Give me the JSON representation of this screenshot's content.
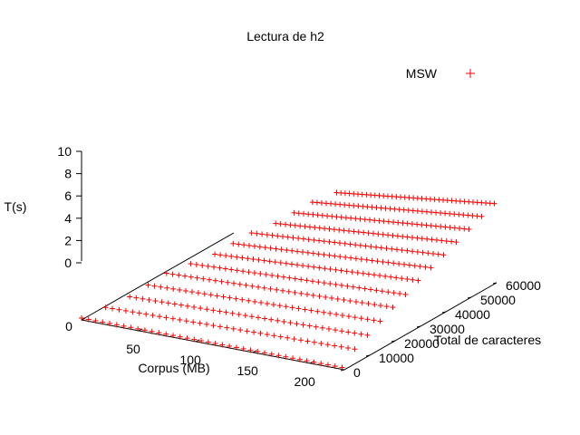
{
  "chart_data": {
    "type": "scatter",
    "title": "Lectura de h2",
    "legend": {
      "label": "MSW",
      "placement": "top-right",
      "marker": "+"
    },
    "series": [
      {
        "name": "MSW",
        "color": "#ff0000",
        "marker": "+"
      }
    ],
    "x_axis": {
      "label": "Corpus (MB)",
      "range": [
        0,
        230
      ],
      "tick_values": [
        0,
        50,
        100,
        150,
        200
      ],
      "tick_labels": [
        "0",
        "50",
        "100",
        "150",
        "200"
      ]
    },
    "y_axis": {
      "label": "Total de caracteres",
      "range": [
        0,
        60000
      ],
      "tick_values": [
        0,
        10000,
        20000,
        30000,
        40000,
        50000,
        60000
      ],
      "tick_labels": [
        "0",
        "10000",
        "20000",
        "30000",
        "40000",
        "50000",
        "60000"
      ]
    },
    "z_axis": {
      "label": "T(s)",
      "range": [
        0,
        10
      ],
      "tick_values": [
        0,
        2,
        4,
        6,
        8,
        10
      ],
      "tick_labels": [
        "0",
        "2",
        "4",
        "6",
        "8",
        "10"
      ]
    },
    "rows": [
      {
        "y": 0,
        "x_from": 0,
        "x_to": 228,
        "z_from": 0.0,
        "z_to": 0.0
      },
      {
        "y": 5000,
        "x_from": 10,
        "x_to": 228,
        "z_from": 0.5,
        "z_to": 1.0
      },
      {
        "y": 10000,
        "x_from": 20,
        "x_to": 228,
        "z_from": 1.0,
        "z_to": 1.6
      },
      {
        "y": 15000,
        "x_from": 25,
        "x_to": 228,
        "z_from": 1.5,
        "z_to": 2.2
      },
      {
        "y": 20000,
        "x_from": 30,
        "x_to": 228,
        "z_from": 2.0,
        "z_to": 2.8
      },
      {
        "y": 25000,
        "x_from": 40,
        "x_to": 228,
        "z_from": 2.4,
        "z_to": 3.3
      },
      {
        "y": 30000,
        "x_from": 50,
        "x_to": 228,
        "z_from": 2.8,
        "z_to": 3.9
      },
      {
        "y": 35000,
        "x_from": 55,
        "x_to": 228,
        "z_from": 3.2,
        "z_to": 4.4
      },
      {
        "y": 40000,
        "x_from": 60,
        "x_to": 228,
        "z_from": 3.6,
        "z_to": 4.9
      },
      {
        "y": 45000,
        "x_from": 70,
        "x_to": 228,
        "z_from": 4.0,
        "z_to": 5.4
      },
      {
        "y": 50000,
        "x_from": 75,
        "x_to": 228,
        "z_from": 4.4,
        "z_to": 5.9
      },
      {
        "y": 55000,
        "x_from": 80,
        "x_to": 228,
        "z_from": 4.8,
        "z_to": 6.4
      },
      {
        "y": 60000,
        "x_from": 90,
        "x_to": 228,
        "z_from": 5.2,
        "z_to": 6.9
      }
    ],
    "points_per_row": 38,
    "grid": false,
    "view": "3d"
  }
}
